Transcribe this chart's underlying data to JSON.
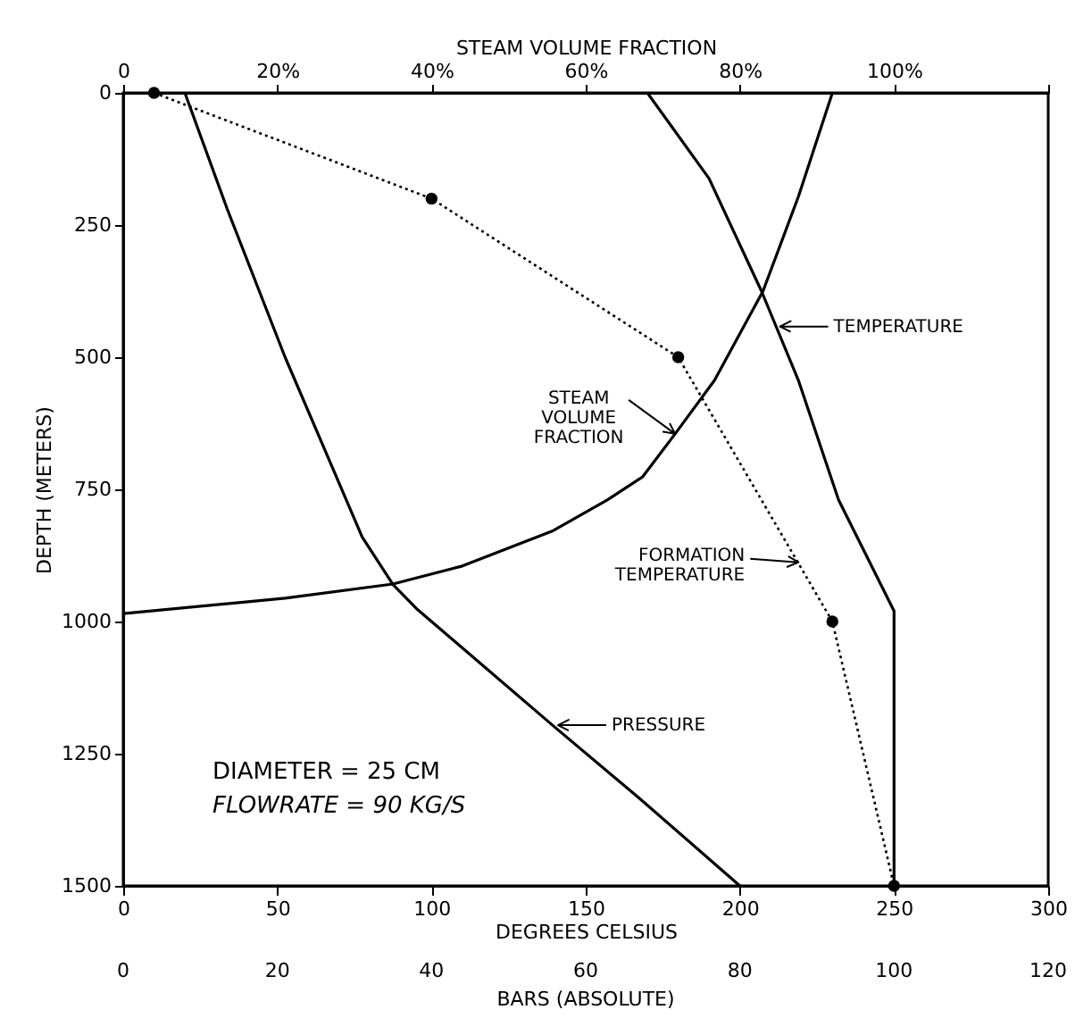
{
  "chart_data": {
    "type": "line",
    "xlabel": "DEGREES CELSIUS",
    "x2label": "STEAM VOLUME FRACTION",
    "ylabel": "DEPTH (METERS)",
    "xlim": [
      0,
      300
    ],
    "xticks": [
      0,
      50,
      100,
      150,
      200,
      250,
      300
    ],
    "x2lim": [
      0,
      120
    ],
    "x2ticks": [
      0,
      {
        "value": 20,
        "label": "20%"
      },
      {
        "value": 40,
        "label": "40%"
      },
      {
        "value": 60,
        "label": "60%"
      },
      {
        "value": 80,
        "label": "80%"
      },
      {
        "value": 100,
        "label": "100%"
      },
      {
        "value": 120,
        "label": null
      }
    ],
    "ylim": [
      1500,
      0
    ],
    "yticks": [
      0,
      250,
      500,
      750,
      1000,
      1250,
      1500
    ],
    "grid": false,
    "series": [
      {
        "color": "#000000",
        "marker": "none",
        "line_style": "solid",
        "x": [
          170,
          190,
          207,
          219,
          232,
          250,
          250
        ],
        "values": [
          0,
          162,
          375,
          544,
          770,
          980,
          1500
        ]
      },
      {
        "color": "#000000",
        "marker": "none",
        "line_style": "solid",
        "axis": "x2",
        "x": [
          92,
          87.6,
          83,
          76.7,
          71.6,
          67.4,
          62.8,
          55.8,
          44,
          35,
          21,
          0
        ],
        "values": [
          0,
          196,
          375,
          544,
          645,
          726,
          770,
          828,
          895,
          929,
          956,
          985
        ]
      },
      {
        "color": "#000000",
        "marker": "none",
        "line_style": "solid",
        "axis": "x2",
        "x": [
          8,
          13.5,
          21,
          31,
          35,
          38,
          56,
          67,
          80
        ],
        "values": [
          0,
          220,
          500,
          840,
          930,
          975,
          1200,
          1335,
          1500
        ]
      },
      {
        "color": "#000000",
        "marker": "circle",
        "line_style": "dotted",
        "x": [
          10,
          100,
          180,
          230,
          250
        ],
        "values": [
          0,
          200,
          500,
          1000,
          1500
        ]
      }
    ],
    "annotations": [
      {
        "text": "TEMPERATURE",
        "x": 213,
        "y": 442
      },
      {
        "text": "STEAM VOLUME FRACTION",
        "x": 179,
        "y": 645
      },
      {
        "text": "FORMATION TEMPERATURE",
        "x": 219,
        "y": 888
      },
      {
        "text": "PRESSURE",
        "x": 141,
        "y": 1196
      },
      "0",
      "20",
      "40",
      "60",
      "80",
      "100",
      "120",
      "BARS (ABSOLUTE)",
      "DIAMETER = 25 CM",
      "FLOWRATE = 90 KG/S"
    ]
  }
}
